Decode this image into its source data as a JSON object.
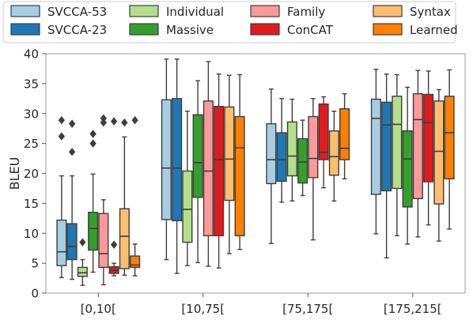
{
  "chart_data": {
    "type": "box",
    "title": "",
    "xlabel": "",
    "ylabel": "BLEU",
    "ylim": [
      0,
      40
    ],
    "yticks": [
      0,
      5,
      10,
      15,
      20,
      25,
      30,
      35,
      40
    ],
    "grid": false,
    "legend_position": "top",
    "categories": [
      "[0,10[",
      "[10,75[",
      "[75,175[",
      "[175,215["
    ],
    "series": [
      {
        "name": "SVCCA-53",
        "color": "#a6cee3",
        "boxes": [
          {
            "whislo": 2.6,
            "q1": 4.6,
            "med": 6.9,
            "q3": 12.2,
            "whishi": 19.6,
            "fliers": [
              26.2,
              28.9
            ]
          },
          {
            "whislo": 5.6,
            "q1": 12.3,
            "med": 20.9,
            "q3": 32.3,
            "whishi": 39.1,
            "fliers": []
          },
          {
            "whislo": 8.3,
            "q1": 18.3,
            "med": 22.3,
            "q3": 28.3,
            "whishi": 34.1,
            "fliers": []
          },
          {
            "whislo": 9.9,
            "q1": 16.5,
            "med": 29.2,
            "q3": 32.4,
            "whishi": 37.4,
            "fliers": []
          }
        ]
      },
      {
        "name": "SVCCA-23",
        "color": "#1f78b4",
        "boxes": [
          {
            "whislo": 2.3,
            "q1": 5.6,
            "med": 7.8,
            "q3": 11.6,
            "whishi": 19.6,
            "fliers": [
              23.6,
              28.3
            ]
          },
          {
            "whislo": 3.3,
            "q1": 12.1,
            "med": 20.9,
            "q3": 32.5,
            "whishi": 39.1,
            "fliers": []
          },
          {
            "whislo": 15.2,
            "q1": 18.7,
            "med": 22.3,
            "q3": 26.8,
            "whishi": 32.5,
            "fliers": []
          },
          {
            "whislo": 5.9,
            "q1": 17.1,
            "med": 28.1,
            "q3": 31.9,
            "whishi": 36.6,
            "fliers": []
          }
        ]
      },
      {
        "name": "Individual",
        "color": "#b2df8a",
        "boxes": [
          {
            "whislo": 1.3,
            "q1": 2.8,
            "med": 3.4,
            "q3": 4.3,
            "whishi": 5.6,
            "fliers": [
              8.5
            ]
          },
          {
            "whislo": 4.6,
            "q1": 8.5,
            "med": 14.0,
            "q3": 20.4,
            "whishi": 30.4,
            "fliers": []
          },
          {
            "whislo": 15.4,
            "q1": 19.6,
            "med": 22.9,
            "q3": 28.6,
            "whishi": 32.4,
            "fliers": []
          },
          {
            "whislo": 9.6,
            "q1": 17.5,
            "med": 28.2,
            "q3": 32.9,
            "whishi": 36.5,
            "fliers": []
          }
        ]
      },
      {
        "name": "Massive",
        "color": "#33a02c",
        "boxes": [
          {
            "whislo": 3.5,
            "q1": 7.2,
            "med": 10.8,
            "q3": 13.5,
            "whishi": 19.9,
            "fliers": [
              25.0,
              26.6
            ]
          },
          {
            "whislo": 5.1,
            "q1": 16.0,
            "med": 21.8,
            "q3": 29.8,
            "whishi": 35.5,
            "fliers": []
          },
          {
            "whislo": 16.3,
            "q1": 18.4,
            "med": 21.9,
            "q3": 25.8,
            "whishi": 28.9,
            "fliers": []
          },
          {
            "whislo": 8.2,
            "q1": 14.4,
            "med": 22.4,
            "q3": 27.1,
            "whishi": 34.4,
            "fliers": []
          }
        ]
      },
      {
        "name": "Family",
        "color": "#fb9a99",
        "boxes": [
          {
            "whislo": 1.4,
            "q1": 4.3,
            "med": 6.6,
            "q3": 13.3,
            "whishi": 15.6,
            "fliers": [
              28.5,
              29.2
            ]
          },
          {
            "whislo": 4.5,
            "q1": 9.6,
            "med": 20.4,
            "q3": 32.1,
            "whishi": 38.7,
            "fliers": []
          },
          {
            "whislo": 8.9,
            "q1": 19.3,
            "med": 22.5,
            "q3": 29.5,
            "whishi": 32.5,
            "fliers": []
          },
          {
            "whislo": 9.4,
            "q1": 15.8,
            "med": 29.0,
            "q3": 33.3,
            "whishi": 37.2,
            "fliers": []
          }
        ]
      },
      {
        "name": "ConCAT",
        "color": "#e31a1c",
        "boxes": [
          {
            "whislo": 2.9,
            "q1": 3.3,
            "med": 3.8,
            "q3": 4.4,
            "whishi": 5.0,
            "fliers": [
              8.1,
              28.7
            ]
          },
          {
            "whislo": 4.2,
            "q1": 9.6,
            "med": 22.3,
            "q3": 31.2,
            "whishi": 36.6,
            "fliers": []
          },
          {
            "whislo": 17.6,
            "q1": 22.3,
            "med": 23.5,
            "q3": 31.6,
            "whishi": 32.8,
            "fliers": []
          },
          {
            "whislo": 11.4,
            "q1": 18.6,
            "med": 28.5,
            "q3": 33.2,
            "whishi": 37.1,
            "fliers": []
          }
        ]
      },
      {
        "name": "Syntax",
        "color": "#fdbf6f",
        "boxes": [
          {
            "whislo": 3.0,
            "q1": 4.1,
            "med": 9.5,
            "q3": 14.1,
            "whishi": 26.1,
            "fliers": [
              28.5
            ]
          },
          {
            "whislo": 6.6,
            "q1": 15.5,
            "med": 22.4,
            "q3": 31.1,
            "whishi": 36.4,
            "fliers": []
          },
          {
            "whislo": 15.4,
            "q1": 19.7,
            "med": 22.8,
            "q3": 27.1,
            "whishi": 30.4,
            "fliers": []
          },
          {
            "whislo": 8.7,
            "q1": 14.9,
            "med": 23.7,
            "q3": 32.1,
            "whishi": 34.0,
            "fliers": []
          }
        ]
      },
      {
        "name": "Learned",
        "color": "#ff7f00",
        "boxes": [
          {
            "whislo": 2.9,
            "q1": 4.3,
            "med": 4.7,
            "q3": 6.2,
            "whishi": 8.2,
            "fliers": [
              28.9
            ]
          },
          {
            "whislo": 7.3,
            "q1": 9.6,
            "med": 24.3,
            "q3": 29.5,
            "whishi": 36.5,
            "fliers": []
          },
          {
            "whislo": 19.1,
            "q1": 22.3,
            "med": 24.2,
            "q3": 30.8,
            "whishi": 33.3,
            "fliers": []
          },
          {
            "whislo": 10.7,
            "q1": 19.1,
            "med": 26.8,
            "q3": 32.9,
            "whishi": 37.3,
            "fliers": []
          }
        ]
      }
    ]
  }
}
